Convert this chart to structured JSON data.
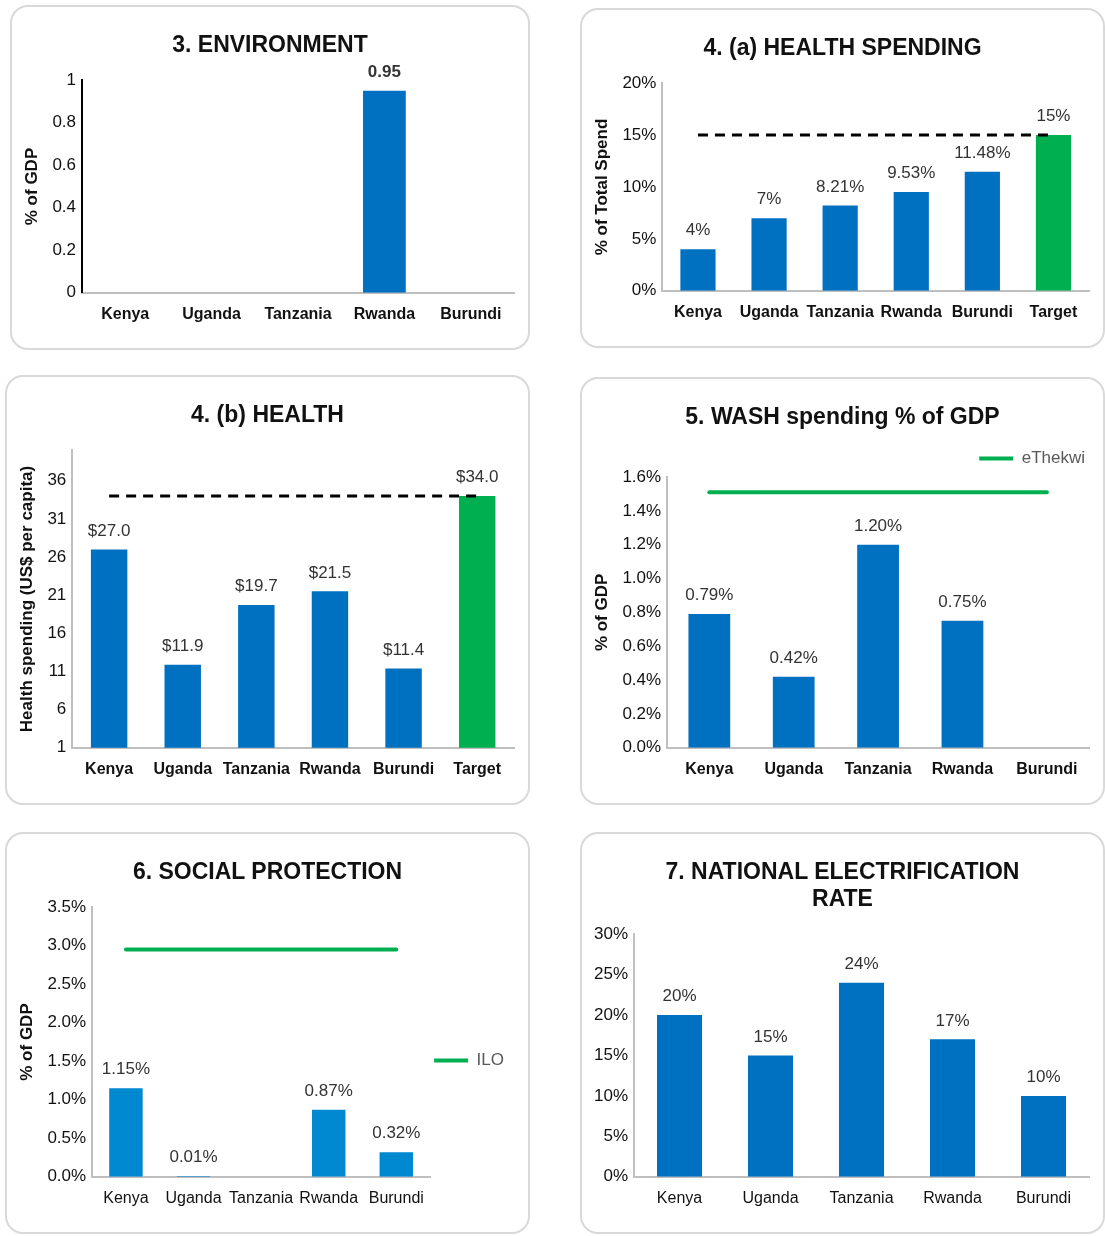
{
  "chart_data": [
    {
      "type": "bar",
      "title": "3. ENVIRONMENT",
      "ylabel": "% of GDP",
      "categories": [
        "Kenya",
        "Uganda",
        "Tanzania",
        "Rwanda",
        "Burundi"
      ],
      "values": [
        null,
        null,
        null,
        0.95,
        null
      ],
      "color": "#0070c0",
      "value_labels": [
        null,
        null,
        null,
        "0.95",
        null
      ],
      "ylim": [
        0,
        1
      ],
      "yticks": [
        0,
        0.2,
        0.4,
        0.6,
        0.8,
        1
      ],
      "legend": false
    },
    {
      "type": "bar",
      "title": "4. (a) HEALTH SPENDING",
      "ylabel": "% of Total Spend",
      "categories": [
        "Kenya",
        "Uganda",
        "Tanzania",
        "Rwanda",
        "Burundi",
        "Target"
      ],
      "values": [
        4,
        7,
        8.21,
        9.53,
        11.48,
        15
      ],
      "colors": [
        "#0070c0",
        "#0070c0",
        "#0070c0",
        "#0070c0",
        "#0070c0",
        "#00b050"
      ],
      "value_labels": [
        "4%",
        "7%",
        "8.21%",
        "9.53%",
        "11.48%",
        "15%"
      ],
      "ylim": [
        0,
        20
      ],
      "yticks": [
        {
          "value": 0,
          "label": "0%"
        },
        {
          "value": 5,
          "label": "5%"
        },
        {
          "value": 10,
          "label": "10%"
        },
        {
          "value": 15,
          "label": "15%"
        },
        {
          "value": 20,
          "label": "20%"
        }
      ],
      "ref_lines": [
        {
          "axis": "y",
          "value": 15,
          "color": "#000000",
          "line_style": "dashed"
        }
      ],
      "legend": false
    },
    {
      "type": "bar",
      "title": "4. (b) HEALTH",
      "ylabel": "Health spending (US$ per capita)",
      "categories": [
        "Kenya",
        "Uganda",
        "Tanzania",
        "Rwanda",
        "Burundi",
        "Target"
      ],
      "values": [
        27.0,
        11.9,
        19.7,
        21.5,
        11.4,
        34.0
      ],
      "colors": [
        "#0070c0",
        "#0070c0",
        "#0070c0",
        "#0070c0",
        "#0070c0",
        "#00b050"
      ],
      "value_labels": [
        "$27.0",
        "$11.9",
        "$19.7",
        "$21.5",
        "$11.4",
        "$34.0"
      ],
      "ylim": [
        1,
        40
      ],
      "yticks": [
        1,
        6,
        11,
        16,
        21,
        26,
        31,
        36
      ],
      "ref_lines": [
        {
          "axis": "y",
          "value": 34,
          "color": "#000000",
          "line_style": "dashed"
        }
      ],
      "legend": false
    },
    {
      "type": "bar",
      "title": "5. WASH spending % of GDP",
      "ylabel": "% of GDP",
      "categories": [
        "Kenya",
        "Uganda",
        "Tanzania",
        "Rwanda",
        "Burundi"
      ],
      "series": [
        {
          "type": "bar",
          "color": "#0070c0",
          "values": [
            0.79,
            0.42,
            1.2,
            0.75,
            null
          ],
          "value_labels": [
            "0.79%",
            "0.42%",
            "1.20%",
            "0.75%",
            null
          ]
        },
        {
          "type": "line",
          "name": "eThekwi",
          "color": "#00b050",
          "values": [
            1.51,
            1.51,
            1.51,
            1.51,
            1.51
          ]
        }
      ],
      "marker": "none",
      "ylim": [
        0,
        1.6
      ],
      "yticks": [
        {
          "value": 0,
          "label": "0.0%"
        },
        {
          "value": 0.2,
          "label": "0.2%"
        },
        {
          "value": 0.4,
          "label": "0.4%"
        },
        {
          "value": 0.6,
          "label": "0.6%"
        },
        {
          "value": 0.8,
          "label": "0.8%"
        },
        {
          "value": 1.0,
          "label": "1.0%"
        },
        {
          "value": 1.2,
          "label": "1.2%"
        },
        {
          "value": 1.4,
          "label": "1.4%"
        },
        {
          "value": 1.6,
          "label": "1.6%"
        }
      ],
      "legend": "top right"
    },
    {
      "type": "bar",
      "title": "6. SOCIAL PROTECTION",
      "ylabel": "% of GDP",
      "categories": [
        "Kenya",
        "Uganda",
        "Tanzania",
        "Rwanda",
        "Burundi"
      ],
      "series": [
        {
          "type": "bar",
          "color": "#0088d1",
          "values": [
            1.15,
            0.01,
            null,
            0.87,
            0.32
          ],
          "value_labels": [
            "1.15%",
            "0.01%",
            null,
            "0.87%",
            "0.32%"
          ]
        },
        {
          "type": "line",
          "name": "ILO",
          "color": "#00b050",
          "values": [
            2.95,
            2.95,
            2.95,
            2.95,
            2.95
          ]
        }
      ],
      "marker": "none",
      "ylim": [
        0,
        3.5
      ],
      "yticks": [
        {
          "value": 0,
          "label": "0.0%"
        },
        {
          "value": 0.5,
          "label": "0.5%"
        },
        {
          "value": 1.0,
          "label": "1.0%"
        },
        {
          "value": 1.5,
          "label": "1.5%"
        },
        {
          "value": 2.0,
          "label": "2.0%"
        },
        {
          "value": 2.5,
          "label": "2.5%"
        },
        {
          "value": 3.0,
          "label": "3.0%"
        },
        {
          "value": 3.5,
          "label": "3.5%"
        }
      ],
      "legend": "right"
    },
    {
      "type": "bar",
      "title": "7. NATIONAL ELECTRIFICATION RATE",
      "categories": [
        "Kenya",
        "Uganda",
        "Tanzania",
        "Rwanda",
        "Burundi"
      ],
      "values": [
        20,
        15,
        24,
        17,
        10
      ],
      "color": "#0070c0",
      "value_labels": [
        "20%",
        "15%",
        "24%",
        "17%",
        "10%"
      ],
      "ylim": [
        0,
        30
      ],
      "yticks": [
        {
          "value": 0,
          "label": "0%"
        },
        {
          "value": 5,
          "label": "5%"
        },
        {
          "value": 10,
          "label": "10%"
        },
        {
          "value": 15,
          "label": "15%"
        },
        {
          "value": 20,
          "label": "20%"
        },
        {
          "value": 25,
          "label": "25%"
        },
        {
          "value": 30,
          "label": "30%"
        }
      ],
      "legend": false
    }
  ]
}
